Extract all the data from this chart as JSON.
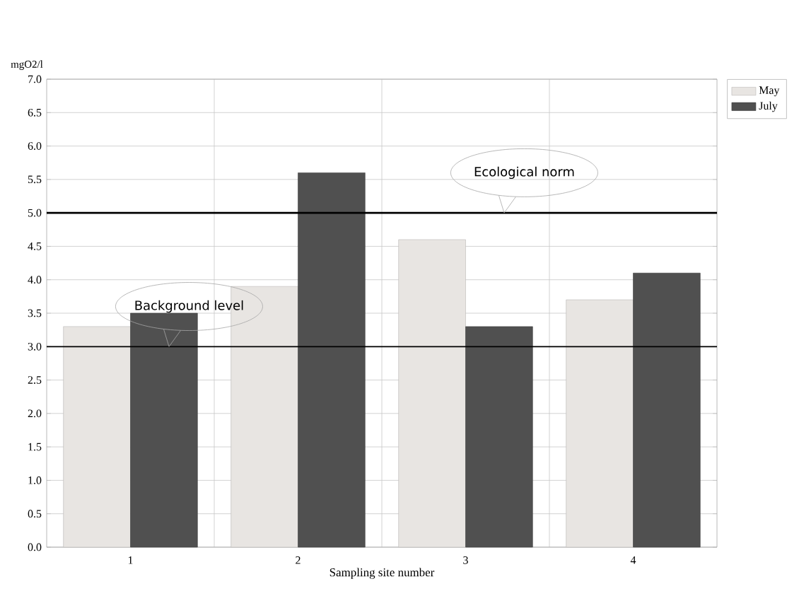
{
  "chart_data": {
    "type": "bar",
    "xlabel": "Sampling site number",
    "ylabel": "mgO2/l",
    "categories": [
      "1",
      "2",
      "3",
      "4"
    ],
    "series": [
      {
        "name": "May",
        "color": "#e8e5e2",
        "values": [
          3.3,
          3.9,
          4.6,
          3.7
        ]
      },
      {
        "name": "July",
        "color": "#505050",
        "values": [
          3.5,
          5.6,
          3.3,
          4.1
        ]
      }
    ],
    "ylim": [
      0,
      7
    ],
    "yticks": [
      {
        "value": 0,
        "label": "0.0"
      },
      {
        "value": 0.5,
        "label": "0.5"
      },
      {
        "value": 1,
        "label": "1.0"
      },
      {
        "value": 1.5,
        "label": "1.5"
      },
      {
        "value": 2,
        "label": "2.0"
      },
      {
        "value": 2.5,
        "label": "2.5"
      },
      {
        "value": 3,
        "label": "3.0"
      },
      {
        "value": 3.5,
        "label": "3.5"
      },
      {
        "value": 4,
        "label": "4.0"
      },
      {
        "value": 4.5,
        "label": "4.5"
      },
      {
        "value": 5,
        "label": "5.0"
      },
      {
        "value": 5.5,
        "label": "5.5"
      },
      {
        "value": 6,
        "label": "6.0"
      },
      {
        "value": 6.5,
        "label": "6.5"
      },
      {
        "value": 7,
        "label": "7.0"
      }
    ],
    "ref_lines": [
      {
        "axis": "y",
        "value": 5,
        "label": "Ecological norm",
        "color": "#000000"
      },
      {
        "axis": "y",
        "value": 3,
        "label": "Background level",
        "color": "#000000"
      }
    ],
    "grid": true,
    "legend": "top right"
  }
}
